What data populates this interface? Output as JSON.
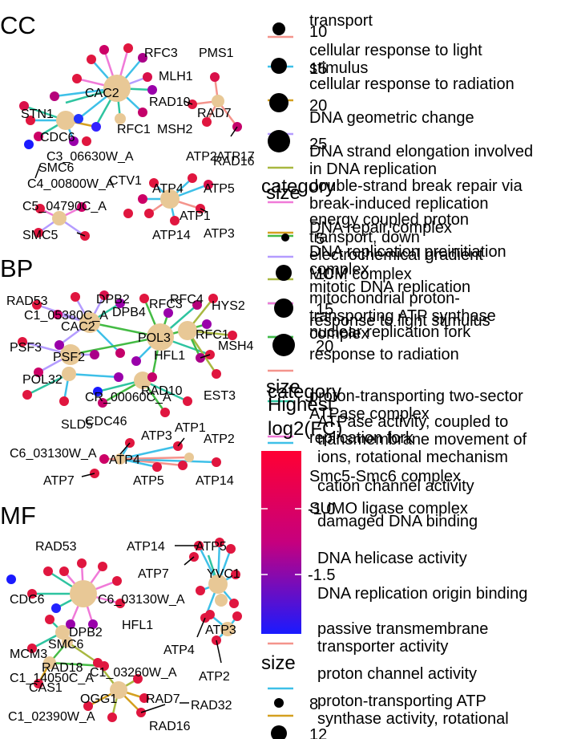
{
  "panels": {
    "cc": {
      "title": "CC"
    },
    "bp": {
      "title": "BP"
    },
    "mf": {
      "title": "MF"
    }
  },
  "genes": {
    "cc": [
      "CAC2",
      "STN1",
      "CDC6",
      "RFC3",
      "MLH1",
      "PMS1",
      "RAD10",
      "RAD7",
      "RFC1",
      "MSH2",
      "C3_06630W_A",
      "ATP2",
      "ATP17",
      "RAD16",
      "SMC6",
      "C4_00800W_A",
      "CTV1",
      "ATP4",
      "ATP5",
      "C5_04790C_A",
      "SMC5",
      "ATP1",
      "ATP14",
      "ATP3"
    ],
    "bp": [
      "RAD53",
      "C1_05380C_A",
      "DPB2",
      "DPB4",
      "RFC3",
      "RFC4",
      "HYS2",
      "CAC2",
      "POL3",
      "RFC1",
      "PSF3",
      "MSH4",
      "PSF2",
      "HFL1",
      "POL32",
      "RAD10",
      "EST3",
      "CR_00060C_A",
      "SLD5",
      "CDC46",
      "ATP1",
      "ATP3",
      "ATP2",
      "C6_03130W_A",
      "ATP4",
      "ATP7",
      "ATP5",
      "ATP14"
    ],
    "mf": [
      "RAD53",
      "ATP14",
      "ATP5",
      "ATP7",
      "YVC1",
      "CDC6",
      "C6_03130W_A",
      "DPB2",
      "HFL1",
      "SMC6",
      "ATP3",
      "MCM3",
      "ATP4",
      "RAD18",
      "C1_14050C_A",
      "C1_03260W_A",
      "CAS1",
      "ATP2",
      "OGG1",
      "RAD7",
      "RAD32",
      "C1_02390W_A",
      "RAD16"
    ]
  },
  "legend_top": {
    "items": [
      "transport",
      "cellular response to light stimulus",
      "cellular response to radiation",
      "DNA geometric change",
      "DNA strand elongation involved in DNA replication",
      "double-strand break repair via break-induced replication",
      "energy coupled proton transport, down electrochemical gradient",
      "mitotic DNA replication",
      "response to light stimulus",
      "response to radiation"
    ],
    "size_title": "size",
    "size_values": [
      "10",
      "15",
      "20",
      "25"
    ]
  },
  "legend_cc": {
    "title": "category",
    "items": [
      "DNA repair complex",
      "DNA replication preinitiation complex",
      "MCM complex",
      "mitochondrial proton-transporting ATP synthase complex",
      "nuclear replication fork",
      "proton-transporting two-sector ATPase complex",
      "replication fork",
      "Smc5-Smc6 complex",
      "SUMO ligase complex"
    ],
    "size_title": "size",
    "size_values": [
      "5",
      "10",
      "15",
      "20"
    ]
  },
  "legend_mf": {
    "title": "category",
    "items": [
      "ATPase activity, coupled to transmembrane movement of ions, rotational mechanism",
      "cation channel activity",
      "damaged DNA binding",
      "DNA helicase activity",
      "DNA replication origin binding",
      "passive transmembrane transporter activity",
      "proton channel activity",
      "proton-transporting ATP synthase activity, rotational mechanism"
    ],
    "size_title": "size",
    "size_values": [
      "8",
      "12"
    ]
  },
  "colorbar": {
    "title_line1": "Highest",
    "title_line2": "log2(FC)",
    "ticks": [
      "-1.0",
      "-1.5"
    ],
    "color_high": "#ff0033",
    "color_mid": "#c6007e",
    "color_low": "#1a1aff"
  },
  "colors": {
    "center": "#e8c896",
    "teal": "#2ec4a0",
    "cyan": "#3ec0e8",
    "pink": "#f07ad8",
    "purple": "#b49cff",
    "olive": "#a8b840",
    "salmon": "#f4948c",
    "gold": "#d4a020",
    "green": "#44bb44"
  }
}
